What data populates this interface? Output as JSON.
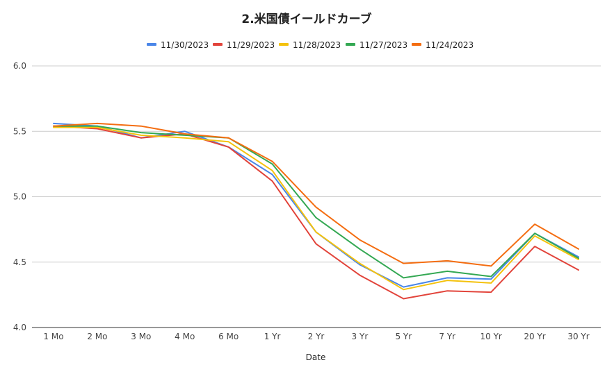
{
  "chart_data": {
    "type": "line",
    "title": "2.米国債イールドカーブ",
    "xlabel": "Date",
    "ylabel": "",
    "ylim": [
      4.0,
      6.0
    ],
    "yticks": [
      "6.0",
      "5.5",
      "5.0",
      "4.5",
      "4.0"
    ],
    "grid": true,
    "legend_position": "top",
    "categories": [
      "1 Mo",
      "2 Mo",
      "3 Mo",
      "4 Mo",
      "6 Mo",
      "1 Yr",
      "2 Yr",
      "3 Yr",
      "5 Yr",
      "7 Yr",
      "10 Yr",
      "20 Yr",
      "30 Yr"
    ],
    "series": [
      {
        "name": "11/30/2023",
        "color": "#4a86e8",
        "values": [
          5.56,
          5.54,
          5.45,
          5.5,
          5.38,
          5.17,
          4.73,
          4.48,
          4.31,
          4.38,
          4.37,
          4.72,
          4.54
        ]
      },
      {
        "name": "11/29/2023",
        "color": "#e2443b",
        "values": [
          5.54,
          5.52,
          5.45,
          5.48,
          5.38,
          5.12,
          4.64,
          4.4,
          4.22,
          4.28,
          4.27,
          4.62,
          4.44
        ]
      },
      {
        "name": "11/28/2023",
        "color": "#f4c20d",
        "values": [
          5.53,
          5.53,
          5.47,
          5.45,
          5.42,
          5.2,
          4.73,
          4.49,
          4.29,
          4.36,
          4.34,
          4.7,
          4.52
        ]
      },
      {
        "name": "11/27/2023",
        "color": "#34a853",
        "values": [
          5.54,
          5.54,
          5.49,
          5.47,
          5.45,
          5.25,
          4.84,
          4.6,
          4.38,
          4.43,
          4.39,
          4.72,
          4.53
        ]
      },
      {
        "name": "11/24/2023",
        "color": "#f46d11",
        "values": [
          5.54,
          5.56,
          5.54,
          5.48,
          5.45,
          5.27,
          4.92,
          4.67,
          4.49,
          4.51,
          4.47,
          4.79,
          4.6
        ]
      }
    ]
  }
}
